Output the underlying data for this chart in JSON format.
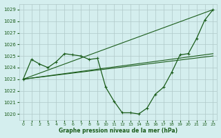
{
  "title": "Graphe pression niveau de la mer (hPa)",
  "background_color": "#d4eeee",
  "grid_color": "#b0c8c8",
  "line_color": "#1a5c1a",
  "xlim": [
    -0.5,
    23.5
  ],
  "ylim": [
    1019.5,
    1029.5
  ],
  "yticks": [
    1020,
    1021,
    1022,
    1023,
    1024,
    1025,
    1026,
    1027,
    1028,
    1029
  ],
  "xticks": [
    0,
    1,
    2,
    3,
    4,
    5,
    6,
    7,
    8,
    9,
    10,
    11,
    12,
    13,
    14,
    15,
    16,
    17,
    18,
    19,
    20,
    21,
    22,
    23
  ],
  "series_main": {
    "x": [
      0,
      1,
      2,
      3,
      4,
      5,
      6,
      7,
      8,
      9,
      10,
      11,
      12,
      13,
      14,
      15,
      16,
      17,
      18,
      19,
      20,
      21,
      22,
      23
    ],
    "y": [
      1023.0,
      1024.7,
      1024.3,
      1024.0,
      1024.5,
      1025.2,
      1025.1,
      1025.0,
      1024.7,
      1024.8,
      1022.3,
      1021.1,
      1020.1,
      1020.1,
      1020.0,
      1020.5,
      1021.7,
      1022.3,
      1023.6,
      1025.1,
      1025.2,
      1026.5,
      1028.1,
      1029.0
    ]
  },
  "series_overlay": [
    {
      "x": [
        0,
        23
      ],
      "y": [
        1023.0,
        1025.0
      ]
    },
    {
      "x": [
        0,
        23
      ],
      "y": [
        1023.0,
        1029.0
      ]
    },
    {
      "x": [
        0,
        23
      ],
      "y": [
        1023.0,
        1025.2
      ]
    }
  ]
}
